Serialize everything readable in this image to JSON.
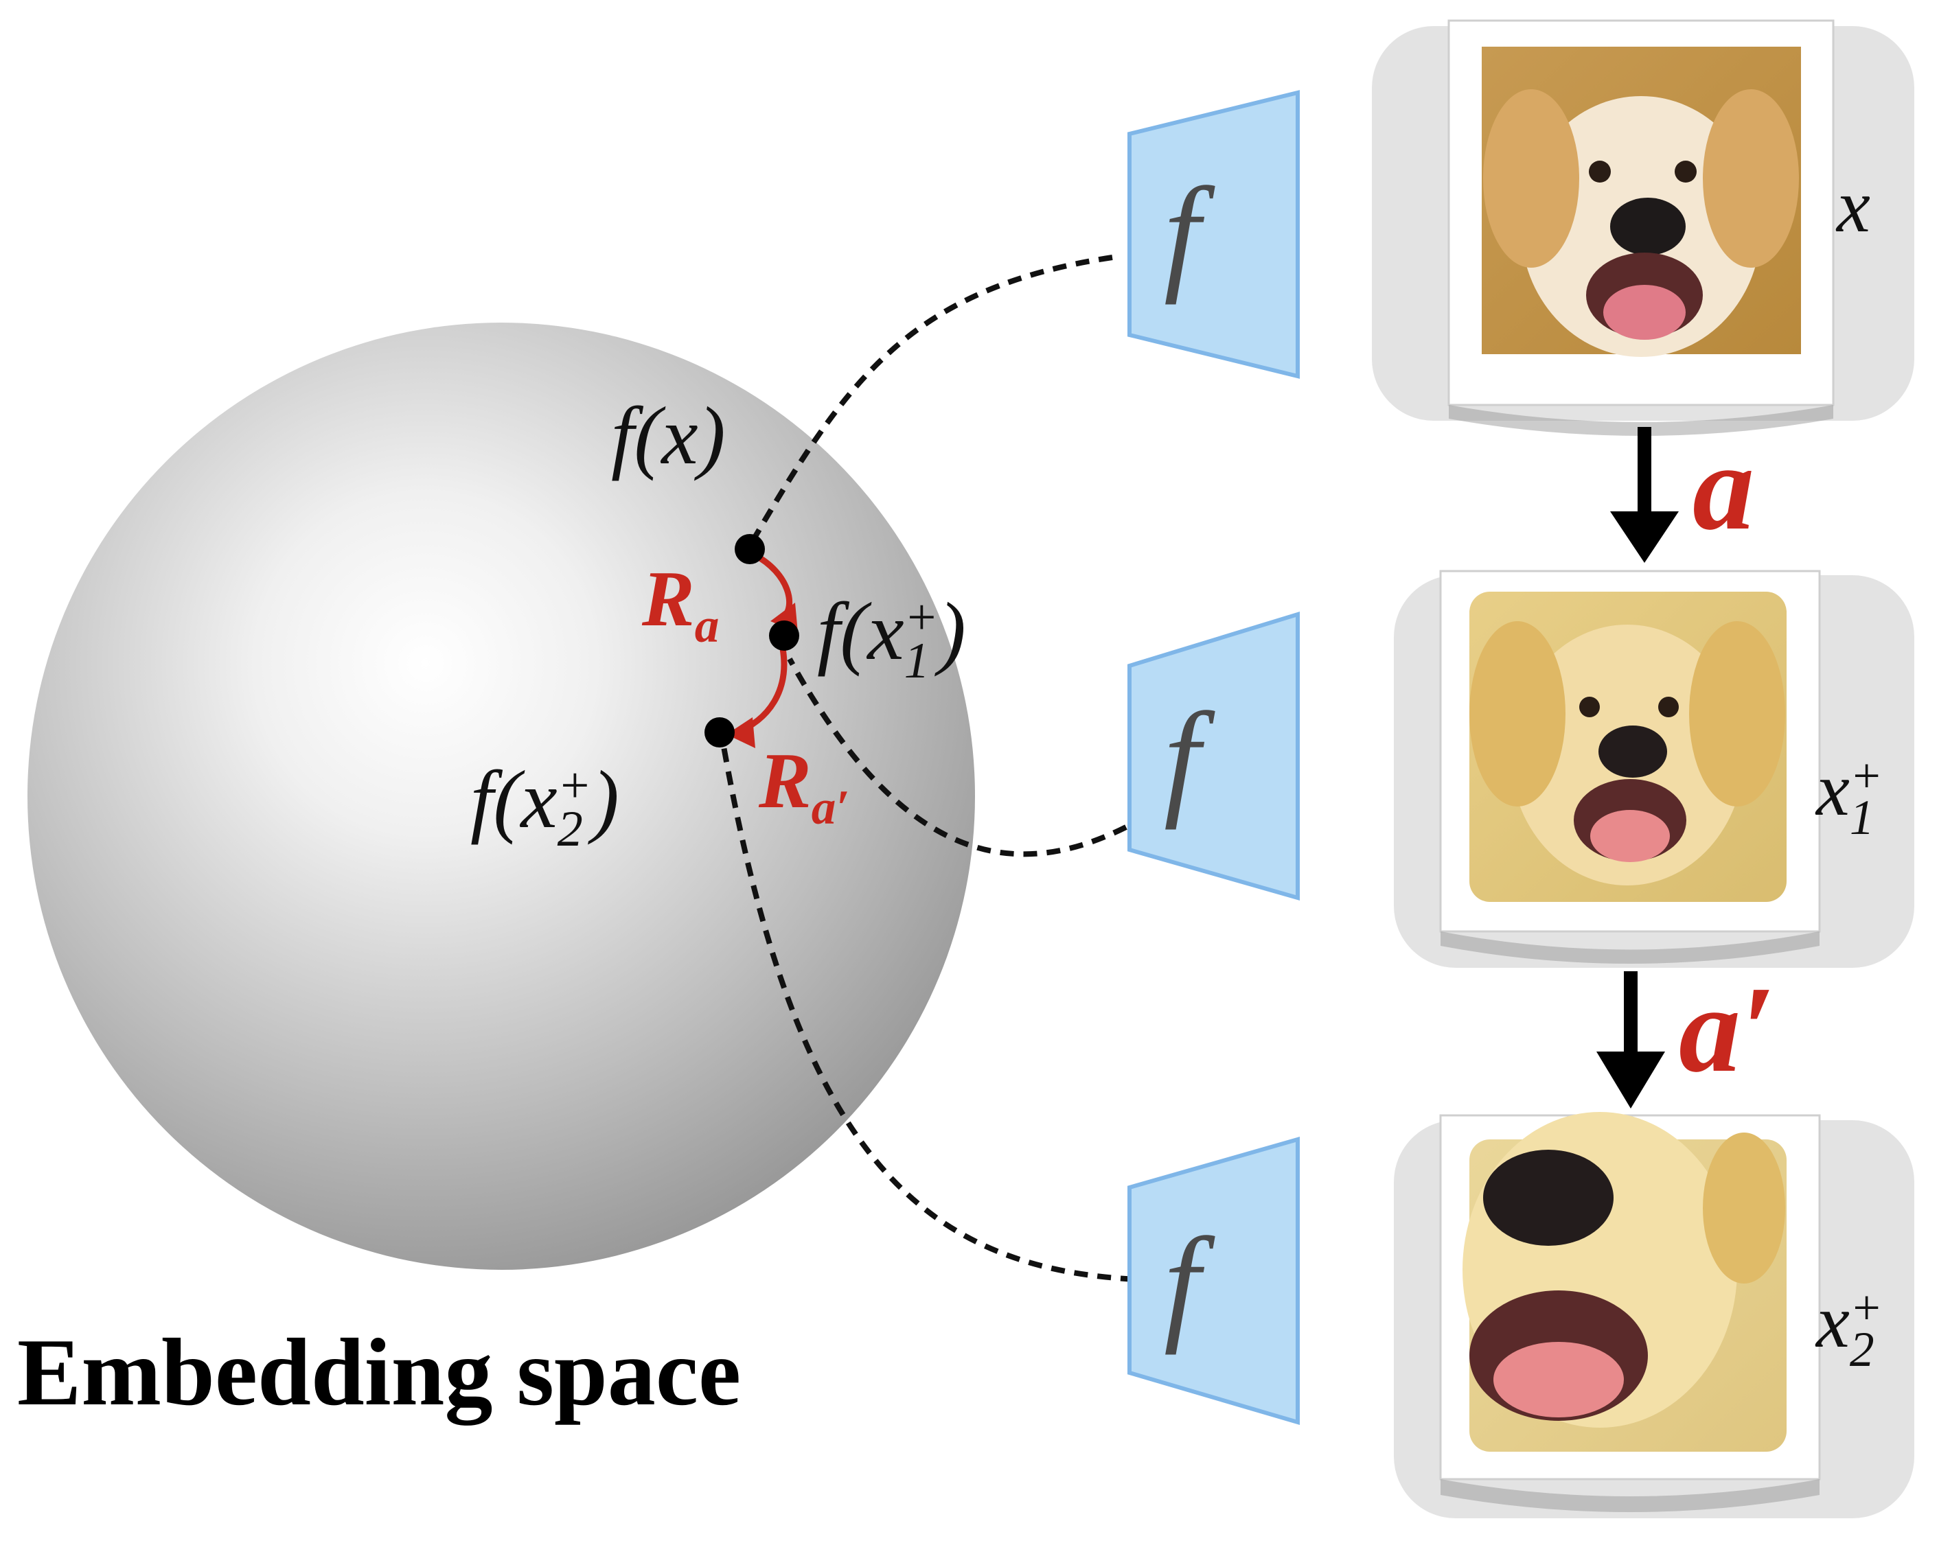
{
  "diagram": {
    "embedding_label": "Embedding space",
    "encoder_symbol": "f",
    "points": {
      "fx": {
        "pre": "f(",
        "var": "x",
        "post": ")"
      },
      "fx1": {
        "pre": "f(",
        "var": "x",
        "sub": "1",
        "sup": "+",
        "post": ")"
      },
      "fx2": {
        "pre": "f(",
        "var": "x",
        "sub": "2",
        "sup": "+",
        "post": ")"
      }
    },
    "rotations": {
      "ra": {
        "main": "R",
        "sub": "a"
      },
      "ra_prime": {
        "main": "R",
        "sub": "a′"
      }
    },
    "augmentations": {
      "a": "a",
      "a_prime": "a′"
    },
    "images": [
      {
        "var": "x",
        "sub": "",
        "sup": ""
      },
      {
        "var": "x",
        "sub": "1",
        "sup": "+"
      },
      {
        "var": "x",
        "sub": "2",
        "sup": "+"
      }
    ],
    "colors": {
      "encoder_fill": "#b8dcf6",
      "encoder_stroke": "#7fb6e8",
      "accent_red": "#c8281e",
      "card_bg": "#e3e3e3"
    }
  }
}
